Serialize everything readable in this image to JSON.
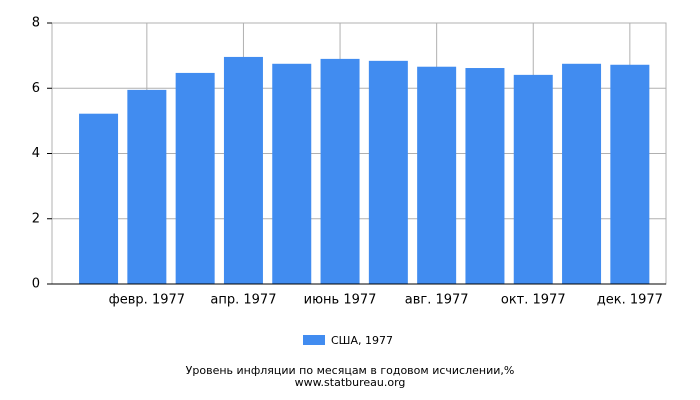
{
  "chart_data": {
    "type": "bar",
    "title": "Уровень инфляции по месяцам в годовом исчислении,%",
    "source": "www.statbureau.org",
    "categories": [
      null,
      "февр. 1977",
      null,
      "апр. 1977",
      null,
      "июнь 1977",
      null,
      "авг. 1977",
      null,
      "окт. 1977",
      null,
      "дек. 1977"
    ],
    "series": [
      {
        "name": "США, 1977",
        "color": "#418cf0",
        "values": [
          5.22,
          5.95,
          6.47,
          6.96,
          6.75,
          6.9,
          6.84,
          6.66,
          6.62,
          6.41,
          6.75,
          6.72
        ]
      }
    ],
    "ylim": [
      0,
      8
    ],
    "yticks": [
      0,
      2,
      4,
      6,
      8
    ],
    "grid": true
  }
}
